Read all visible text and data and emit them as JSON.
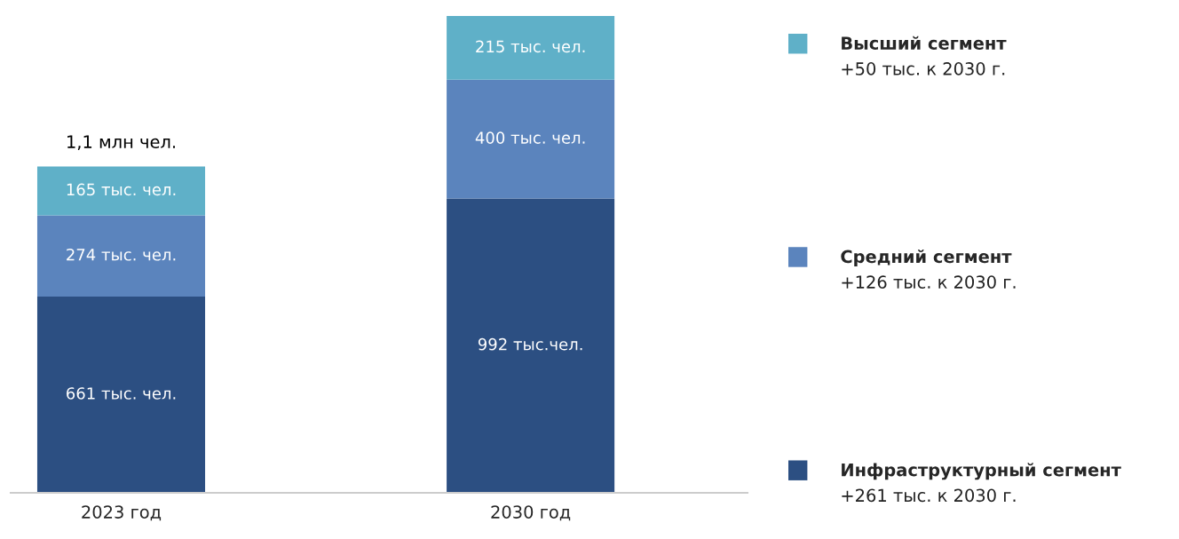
{
  "chart_data": {
    "type": "bar",
    "stacked": true,
    "categories": [
      "2023 год",
      "2030 год"
    ],
    "series": [
      {
        "name": "Инфраструктурный сегмент",
        "color": "#2c4f82",
        "values": [
          661,
          992
        ],
        "value_labels": [
          "661 тыс. чел.",
          "992 тыс.чел."
        ]
      },
      {
        "name": "Средний сегмент",
        "color": "#5b84bd",
        "values": [
          274,
          400
        ],
        "value_labels": [
          "274 тыс. чел.",
          "400 тыс. чел."
        ]
      },
      {
        "name": "Высший сегмент",
        "color": "#5fb0c8",
        "values": [
          165,
          215
        ],
        "value_labels": [
          "165 тыс. чел.",
          "215 тыс. чел."
        ]
      }
    ],
    "legend": "right",
    "tick_labels": "x",
    "annotations": [
      "+50 тыс. к 2030 г.",
      "+126 тыс. к 2030 г.",
      "+261 тыс. к 2030 г.",
      {
        "text": "1,1 млн чел.",
        "x": "2023 год",
        "y": 1100
      }
    ]
  }
}
